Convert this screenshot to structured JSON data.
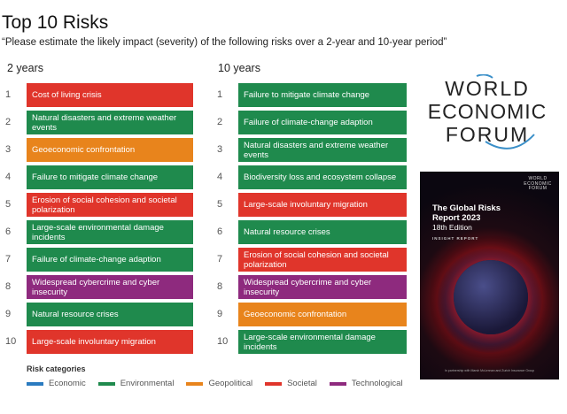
{
  "title": "Top 10 Risks",
  "subtitle": "“Please estimate the likely impact (severity) of the following risks over a 2-year and 10-year period”",
  "colors": {
    "Economic": "#2a7bc0",
    "Environmental": "#1f8a4d",
    "Geopolitical": "#e8841c",
    "Societal": "#e0352b",
    "Technological": "#8e2a7e"
  },
  "two_years": {
    "heading": "2 years",
    "items": [
      {
        "rank": "1",
        "label": "Cost of living crisis",
        "category": "Societal"
      },
      {
        "rank": "2",
        "label": "Natural disasters and extreme weather events",
        "category": "Environmental"
      },
      {
        "rank": "3",
        "label": "Geoeconomic confrontation",
        "category": "Geopolitical"
      },
      {
        "rank": "4",
        "label": "Failure to mitigate climate change",
        "category": "Environmental"
      },
      {
        "rank": "5",
        "label": "Erosion of social cohesion and societal polarization",
        "category": "Societal"
      },
      {
        "rank": "6",
        "label": "Large-scale environmental damage incidents",
        "category": "Environmental"
      },
      {
        "rank": "7",
        "label": "Failure of climate-change adaption",
        "category": "Environmental"
      },
      {
        "rank": "8",
        "label": "Widespread cybercrime and cyber insecurity",
        "category": "Technological"
      },
      {
        "rank": "9",
        "label": "Natural resource crises",
        "category": "Environmental"
      },
      {
        "rank": "10",
        "label": "Large-scale involuntary migration",
        "category": "Societal"
      }
    ]
  },
  "ten_years": {
    "heading": "10 years",
    "items": [
      {
        "rank": "1",
        "label": "Failure to mitigate climate change",
        "category": "Environmental"
      },
      {
        "rank": "2",
        "label": "Failure of climate-change adaption",
        "category": "Environmental"
      },
      {
        "rank": "3",
        "label": "Natural disasters and extreme weather events",
        "category": "Environmental"
      },
      {
        "rank": "4",
        "label": "Biodiversity loss and ecosystem collapse",
        "category": "Environmental"
      },
      {
        "rank": "5",
        "label": "Large-scale involuntary migration",
        "category": "Societal"
      },
      {
        "rank": "6",
        "label": "Natural resource crises",
        "category": "Environmental"
      },
      {
        "rank": "7",
        "label": "Erosion of social cohesion and societal polarization",
        "category": "Societal"
      },
      {
        "rank": "8",
        "label": "Widespread cybercrime and cyber insecurity",
        "category": "Technological"
      },
      {
        "rank": "9",
        "label": "Geoeconomic confrontation",
        "category": "Geopolitical"
      },
      {
        "rank": "10",
        "label": "Large-scale environmental damage incidents",
        "category": "Environmental"
      }
    ]
  },
  "legend": {
    "title": "Risk categories",
    "items": [
      "Economic",
      "Environmental",
      "Geopolitical",
      "Societal",
      "Technological"
    ]
  },
  "logo": {
    "lines": [
      "WORLD",
      "ECONOMIC",
      "FORUM"
    ]
  },
  "cover": {
    "logo": "WORLD ECONOMIC FORUM",
    "title_line1": "The Global Risks",
    "title_line2": "Report 2023",
    "edition": "18th Edition",
    "type": "INSIGHT REPORT",
    "footer": "In partnership with Marsh McLennan and Zurich Insurance Group"
  }
}
